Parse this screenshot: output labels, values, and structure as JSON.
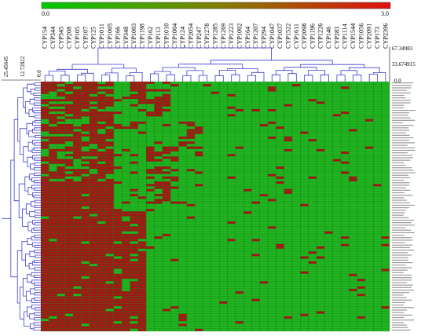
{
  "chart_data": {
    "type": "heatmap",
    "title": "",
    "color_scale": {
      "min_label": "0.0",
      "max_label": "3.0",
      "min_value": 0,
      "max_value": 3,
      "low_color": "#00c800",
      "mid_color": "#808000",
      "high_color": "#e01010"
    },
    "cell_colors": {
      "absent": "#21b521",
      "present": "#a61515"
    },
    "columns": [
      "CYP154",
      "CYP344",
      "CYP345",
      "CYP208",
      "CYP105",
      "CYP107",
      "CYP125",
      "CYP1011",
      "CYP1005",
      "CYP166",
      "CYP348",
      "CYP1003",
      "CYP1198",
      "CYP162",
      "CYP113",
      "CYP1010",
      "CYP1004",
      "CYP124",
      "CYP2054",
      "CYP247",
      "CYP1278",
      "CYP1285",
      "CYP1269",
      "CYP1223",
      "CYP1002",
      "CYP164",
      "CYP1207",
      "CYP294",
      "CYP1047",
      "CYP1037",
      "CYP1522",
      "CYP1611",
      "CYP2098",
      "CYP1196",
      "CYP1226",
      "CYP146",
      "CYP283",
      "CYP1114",
      "CYP1544",
      "CYP1056",
      "CYP2091",
      "CYP173",
      "CYP2396"
    ],
    "row_count": 100,
    "top_dendrogram_axis": {
      "ticks": [
        "67.34983",
        "33.674915",
        "0.0"
      ]
    },
    "left_dendrogram_axis": {
      "ticks": [
        "25.45645",
        "12.72822",
        "0.0"
      ]
    },
    "row_labels": "illegible (one label per row, too small to read)"
  }
}
